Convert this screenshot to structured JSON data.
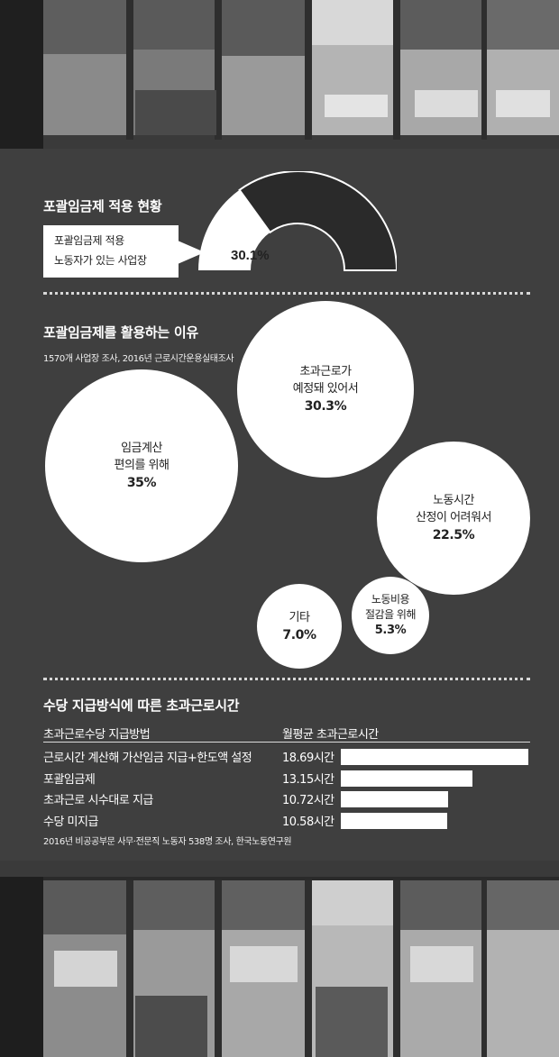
{
  "section1": {
    "title": "포괄임금제 적용 현황"
  },
  "donut": {
    "callout_lines": [
      "포괄임금제 적용",
      "노동자가 있는 사업장"
    ],
    "value_label": "30.1%",
    "value": 30.1,
    "highlight_color": "#ffffff",
    "rest_color": "#2a2a2a"
  },
  "section2": {
    "title": "포괄임금제를 활용하는 이유",
    "note": "1570개 사업장 조사, 2016년 근로시간운용실태조사"
  },
  "section3": {
    "title": "수당 지급방식에 따른 초과근로시간",
    "col_method": "초과근로수당 지급방법",
    "col_hours": "월평균 초과근로시간",
    "note": "2016년 비공공부문 사무·전문직 노동자 538명 조사, 한국노동연구원"
  },
  "chart_data": [
    {
      "type": "pie",
      "title": "포괄임금제 적용 현황",
      "slices": [
        {
          "label": "포괄임금제 적용 노동자가 있는 사업장",
          "value": 30.1
        },
        {
          "label": "",
          "value": 69.9
        }
      ]
    },
    {
      "type": "bubble",
      "title": "포괄임금제를 활용하는 이유",
      "subtitle": "1570개 사업장 조사, 2016년 근로시간운용실태조사",
      "items": [
        {
          "lines": [
            "임금계산",
            "편의를 위해"
          ],
          "value_label": "35%",
          "value": 35
        },
        {
          "lines": [
            "초과근로가",
            "예정돼 있어서"
          ],
          "value_label": "30.3%",
          "value": 30.3
        },
        {
          "lines": [
            "노동시간",
            "산정이 어려워서"
          ],
          "value_label": "22.5%",
          "value": 22.5
        },
        {
          "lines": [
            "기타"
          ],
          "value_label": "7.0%",
          "value": 7.0
        },
        {
          "lines": [
            "노동비용",
            "절감을 위해"
          ],
          "value_label": "5.3%",
          "value": 5.3
        }
      ]
    },
    {
      "type": "bar",
      "title": "수당 지급방식에 따른 초과근로시간",
      "xlabel": "초과근로수당 지급방법",
      "ylabel": "월평균 초과근로시간",
      "categories": [
        "근로시간 계산해 가산임금 지급+한도액 설정",
        "포괄임금제",
        "초과근로 시수대로 지급",
        "수당 미지급"
      ],
      "values": [
        18.69,
        13.15,
        10.72,
        10.58
      ],
      "value_labels": [
        "18.69시간",
        "13.15시간",
        "10.72시간",
        "10.58시간"
      ],
      "source": "2016년 비공공부문 사무·전문직 노동자 538명 조사, 한국노동연구원"
    }
  ]
}
